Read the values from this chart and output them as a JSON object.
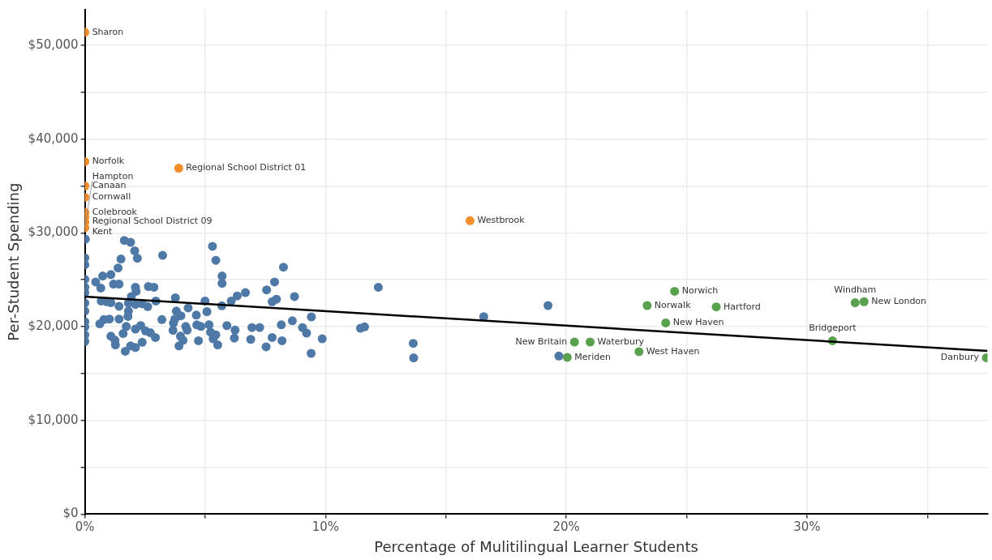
{
  "chart_data": {
    "type": "scatter",
    "xlabel": "Percentage of Mulitilingual Learner Students",
    "ylabel": "Per-Student Spending",
    "xlim": [
      0,
      37.5
    ],
    "ylim": [
      0,
      53800
    ],
    "xticks": [
      {
        "value": 0,
        "label": "0%"
      },
      {
        "value": 5,
        "label": null
      },
      {
        "value": 10,
        "label": "10%"
      },
      {
        "value": 15,
        "label": null
      },
      {
        "value": 20,
        "label": "20%"
      },
      {
        "value": 25,
        "label": null
      },
      {
        "value": 30,
        "label": "30%"
      },
      {
        "value": 35,
        "label": null
      }
    ],
    "yticks": [
      {
        "value": 0,
        "label": "$0"
      },
      {
        "value": 5000,
        "label": null
      },
      {
        "value": 10000,
        "label": "$10,000"
      },
      {
        "value": 15000,
        "label": null
      },
      {
        "value": 20000,
        "label": "$20,000"
      },
      {
        "value": 25000,
        "label": null
      },
      {
        "value": 30000,
        "label": "$30,000"
      },
      {
        "value": 35000,
        "label": null
      },
      {
        "value": 40000,
        "label": "$40,000"
      },
      {
        "value": 45000,
        "label": null
      },
      {
        "value": 50000,
        "label": "$50,000"
      }
    ],
    "grid": true,
    "legend": false,
    "marker": "circle",
    "series": [
      {
        "color": "#4e79a7",
        "x": [
          0.02,
          1.64,
          1.9,
          2.07,
          2.18,
          1.5,
          3.23,
          5.3,
          5.44,
          1.38,
          8.25,
          0,
          0,
          0.74,
          1.08,
          5.7,
          5.7,
          0.45,
          0.66,
          1.19,
          1.42,
          2.1,
          2.13,
          2.64,
          2.87,
          0,
          0,
          1.93,
          3.76,
          4.99,
          2.95,
          6.08,
          6.33,
          6.67,
          7.55,
          7.88,
          7.78,
          7.96,
          8.71,
          0.68,
          0.91,
          1.08,
          1.81,
          2.1,
          2.38,
          2.61,
          1.42,
          0,
          5.69,
          4.29,
          3.8,
          5.07,
          4.63,
          3.99,
          3.74,
          3.68,
          1.81,
          1.79,
          1.42,
          1.02,
          0.79,
          0.62,
          3.2,
          0,
          0,
          0,
          0,
          1.72,
          2.1,
          2.32,
          2.52,
          2.72,
          2.93,
          1.59,
          1.08,
          1.25,
          1.27,
          1.68,
          1.9,
          2.1,
          2.38,
          3.66,
          3.97,
          4.08,
          3.91,
          4.19,
          4.25,
          4.65,
          4.82,
          5.16,
          5.22,
          5.44,
          5.33,
          5.52,
          4.72,
          5.9,
          6.24,
          6.21,
          6.89,
          6.94,
          7.26,
          7.53,
          7.78,
          8.16,
          8.19,
          8.62,
          9.04,
          9.21,
          9.41,
          9.4,
          9.86,
          0,
          0,
          12.19,
          11.45,
          11.62,
          13.64,
          13.66,
          16.57,
          19.24,
          19.69
        ],
        "values": [
          29330,
          29190,
          28990,
          28090,
          27300,
          27210,
          27600,
          28570,
          27070,
          26250,
          26340,
          27330,
          26600,
          25400,
          25550,
          25400,
          24620,
          24760,
          24110,
          24530,
          24530,
          24200,
          23770,
          24280,
          24200,
          25040,
          24200,
          23210,
          23070,
          22730,
          22730,
          22730,
          23270,
          23630,
          23920,
          24760,
          22650,
          22930,
          23210,
          22730,
          22650,
          22560,
          22500,
          22360,
          22440,
          22140,
          22170,
          22500,
          22220,
          22000,
          21660,
          21600,
          21230,
          21150,
          20810,
          20390,
          21660,
          21090,
          20810,
          20810,
          20750,
          20300,
          20750,
          20530,
          19970,
          19120,
          18420,
          20020,
          19740,
          20110,
          19540,
          19350,
          18840,
          19260,
          18980,
          18550,
          18050,
          17370,
          17940,
          17770,
          18330,
          19600,
          18980,
          18550,
          17940,
          20020,
          19630,
          20190,
          20020,
          20190,
          19400,
          19120,
          18700,
          18050,
          18500,
          20110,
          19630,
          18780,
          18640,
          19900,
          19900,
          17850,
          18840,
          20190,
          18500,
          20620,
          19900,
          19310,
          21040,
          17150,
          18700,
          21660,
          23630,
          24200,
          19820,
          19970,
          18210,
          16670,
          21070,
          22250,
          16860
        ]
      },
      {
        "color": "#f28e2b",
        "x": [
          0,
          0,
          3.9,
          0,
          0,
          0,
          0,
          0,
          0,
          16.0
        ],
        "values": [
          51400,
          37600,
          36900,
          35000,
          33800,
          32200,
          31720,
          31130,
          30540,
          31300
        ]
      },
      {
        "color": "#59a14f",
        "x": [
          24.5,
          23.36,
          26.23,
          24.13,
          20.34,
          20.99,
          23.02,
          20.04,
          32.0,
          32.37,
          31.06,
          37.45
        ],
        "values": [
          23770,
          22250,
          22100,
          20400,
          18360,
          18360,
          17330,
          16720,
          22550,
          22660,
          18500,
          16680
        ]
      },
      {
        "type": "line",
        "marker": "none",
        "color": "#000000",
        "x": [
          0,
          37.5
        ],
        "values": [
          23200,
          17400
        ]
      }
    ],
    "annotations": [
      {
        "text": "Sharon",
        "x": 0,
        "y": 51400
      },
      {
        "text": "Norfolk",
        "x": 0,
        "y": 37600
      },
      {
        "text": "Regional School District 01",
        "x": 3.9,
        "y": 36900
      },
      {
        "text": "Canaan",
        "x": 0,
        "y": 35000
      },
      {
        "text": "Cornwall",
        "x": 0,
        "y": 33800
      },
      {
        "text": "Colebrook",
        "x": 0,
        "y": 32200
      },
      {
        "text": "Regional School District 09",
        "x": 0,
        "y": 31720
      },
      {
        "text": "Kent",
        "x": 0,
        "y": 31130
      },
      {
        "text": "Hampton",
        "x": 0,
        "y": 30540
      },
      {
        "text": "Westbrook",
        "x": 16.0,
        "y": 31300
      },
      {
        "text": "Norwich",
        "x": 24.5,
        "y": 23770
      },
      {
        "text": "Norwalk",
        "x": 23.36,
        "y": 22250
      },
      {
        "text": "Hartford",
        "x": 26.23,
        "y": 22100
      },
      {
        "text": "New Haven",
        "x": 24.13,
        "y": 20400
      },
      {
        "text": "New Britain",
        "x": 20.34,
        "y": 18360
      },
      {
        "text": "Waterbury",
        "x": 20.99,
        "y": 18360
      },
      {
        "text": "West Haven",
        "x": 23.02,
        "y": 17330
      },
      {
        "text": "Meriden",
        "x": 20.04,
        "y": 16720
      },
      {
        "text": "Windham",
        "x": 32.0,
        "y": 22550
      },
      {
        "text": "New London",
        "x": 32.37,
        "y": 22660
      },
      {
        "text": "Bridgeport",
        "x": 31.06,
        "y": 18500
      },
      {
        "text": "Danbury",
        "x": 37.45,
        "y": 16680
      }
    ]
  }
}
